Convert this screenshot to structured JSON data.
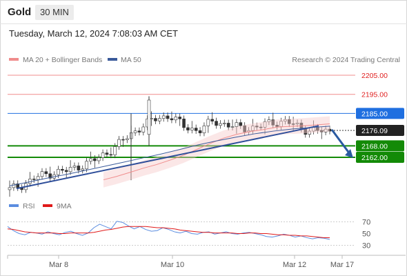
{
  "header": {
    "symbol": "Gold",
    "timeframe": "30 MIN",
    "datetime": "Tuesday, March 12, 2024 7:08:03 AM CET"
  },
  "legend": {
    "ma20_label": "MA 20 + Bollinger Bands",
    "ma50_label": "MA 50",
    "copyright": "Research © 2024 Trading Central"
  },
  "rsi_legend": {
    "rsi_label": "RSI",
    "ma_label": "9MA"
  },
  "colors": {
    "ma20": "#f08c8c",
    "ma50": "#3a5a9a",
    "support": "#138a07",
    "pivot": "#1f6fe0",
    "resistance": "#f08c8c",
    "candle_up": "#ffffff",
    "candle_down": "#333333",
    "arrow": "#2a5aa0"
  },
  "chart_data": [
    {
      "type": "candlestick",
      "title": "Gold 30 MIN",
      "x_tick_labels": [
        "Mar 8",
        "Mar 10",
        "Mar 12",
        "Mar 17"
      ],
      "ylim": [
        2141,
        2209
      ],
      "levels": [
        {
          "label": "2205.00",
          "value": 2205.0,
          "kind": "resistance"
        },
        {
          "label": "2195.00",
          "value": 2195.0,
          "kind": "resistance"
        },
        {
          "label": "2185.00",
          "value": 2185.0,
          "kind": "pivot"
        },
        {
          "label": "2176.09",
          "value": 2176.09,
          "kind": "last_price"
        },
        {
          "label": "2168.00",
          "value": 2168.0,
          "kind": "support"
        },
        {
          "label": "2162.00",
          "value": 2162.0,
          "kind": "support"
        }
      ],
      "series": [
        {
          "name": "MA 20 + Bollinger Bands",
          "values": [
            2150.2,
            2152.0,
            2154.1,
            2156.3,
            2158.2,
            2160.5,
            2163.0,
            2166.1,
            2169.2,
            2172.0,
            2174.0,
            2175.5,
            2176.5,
            2177.8,
            2178.2,
            2178.5,
            2179.0,
            2179.5
          ]
        },
        {
          "name": "MA 50",
          "values": [
            2147.0,
            2149.0,
            2151.1,
            2153.0,
            2155.1,
            2157.2,
            2159.3,
            2161.5,
            2163.6,
            2166.0,
            2168.5,
            2170.6,
            2172.5,
            2174.3,
            2175.7,
            2176.8,
            2177.6,
            2178.3
          ]
        }
      ],
      "trendline": {
        "from": 2145.6,
        "to": 2178.5
      },
      "projection": {
        "from": 2176.5,
        "to": 2162.0
      }
    },
    {
      "type": "line",
      "title": "RSI",
      "y_ticks": [
        70,
        50,
        30
      ],
      "ylim": [
        20,
        80
      ],
      "series": [
        {
          "name": "RSI",
          "values": [
            62,
            55,
            50,
            48,
            52,
            51,
            49,
            53,
            50,
            48,
            52,
            54,
            50,
            47,
            51,
            60,
            66,
            62,
            58,
            71,
            69,
            63,
            58,
            62,
            57,
            54,
            55,
            60,
            57,
            53,
            51,
            54,
            50,
            49,
            52,
            53,
            49,
            51,
            53,
            50,
            49,
            51,
            52,
            50,
            48,
            45,
            44,
            46,
            49,
            47,
            44,
            46,
            43,
            41,
            43,
            42,
            40
          ]
        },
        {
          "name": "9MA",
          "values": [
            58,
            57,
            55,
            53,
            52,
            51,
            51,
            51,
            51,
            50,
            50,
            51,
            51,
            51,
            51,
            52,
            54,
            56,
            57,
            59,
            61,
            62,
            62,
            62,
            62,
            61,
            60,
            60,
            59,
            58,
            56,
            55,
            54,
            53,
            52,
            52,
            51,
            51,
            51,
            51,
            50,
            50,
            51,
            51,
            50,
            50,
            49,
            48,
            48,
            47,
            47,
            46,
            46,
            45,
            44,
            43,
            43
          ]
        }
      ]
    }
  ]
}
